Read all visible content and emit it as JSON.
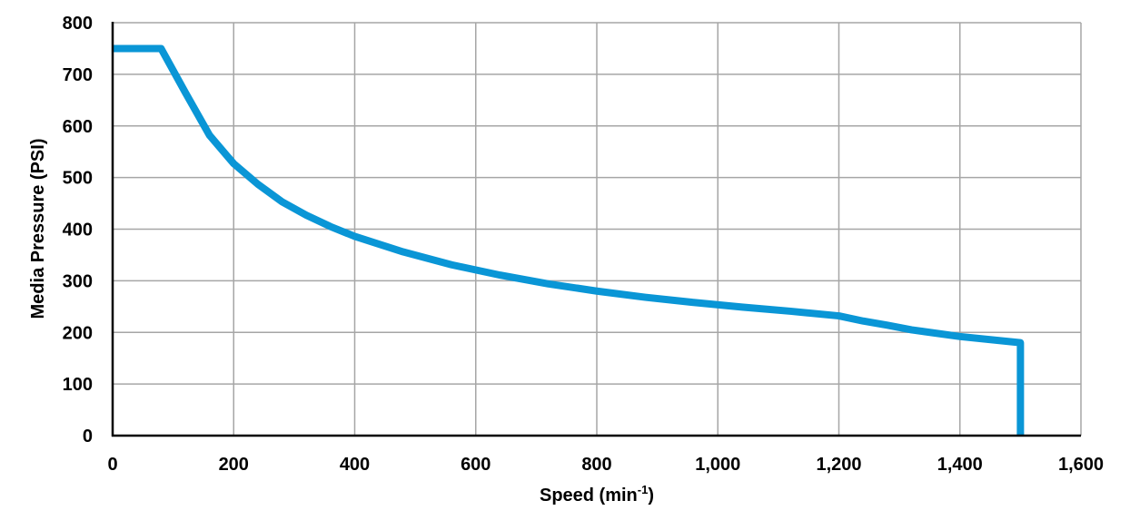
{
  "chart_data": {
    "type": "line",
    "title": "",
    "xlabel": "Speed (min",
    "xlabel_sup": "-1",
    "xlabel_suffix": ")",
    "ylabel": "Media Pressure (PSI)",
    "xlim": [
      0,
      1600
    ],
    "ylim": [
      0,
      800
    ],
    "grid": true,
    "legend": "none",
    "x_ticks": [
      0,
      200,
      400,
      600,
      800,
      1000,
      1200,
      1400,
      1600
    ],
    "x_tick_labels": [
      "0",
      "200",
      "400",
      "600",
      "800",
      "1,000",
      "1,200",
      "1,400",
      "1,600"
    ],
    "y_ticks": [
      0,
      100,
      200,
      300,
      400,
      500,
      600,
      700,
      800
    ],
    "y_tick_labels": [
      "0",
      "100",
      "200",
      "300",
      "400",
      "500",
      "600",
      "700",
      "800"
    ],
    "colors": {
      "series": "#0a96d6",
      "grid": "#a6a6a6",
      "axis": "#000000"
    },
    "series": [
      {
        "name": "",
        "x": [
          0,
          80,
          120,
          160,
          200,
          240,
          280,
          320,
          360,
          400,
          480,
          560,
          640,
          720,
          800,
          880,
          960,
          1040,
          1120,
          1200,
          1240,
          1280,
          1320,
          1400,
          1500,
          1500
        ],
        "y": [
          750,
          750,
          665,
          582,
          527,
          487,
          453,
          427,
          405,
          386,
          356,
          331,
          311,
          294,
          280,
          268,
          258,
          249,
          241,
          232,
          222,
          214,
          205,
          192,
          180,
          0
        ]
      }
    ]
  }
}
